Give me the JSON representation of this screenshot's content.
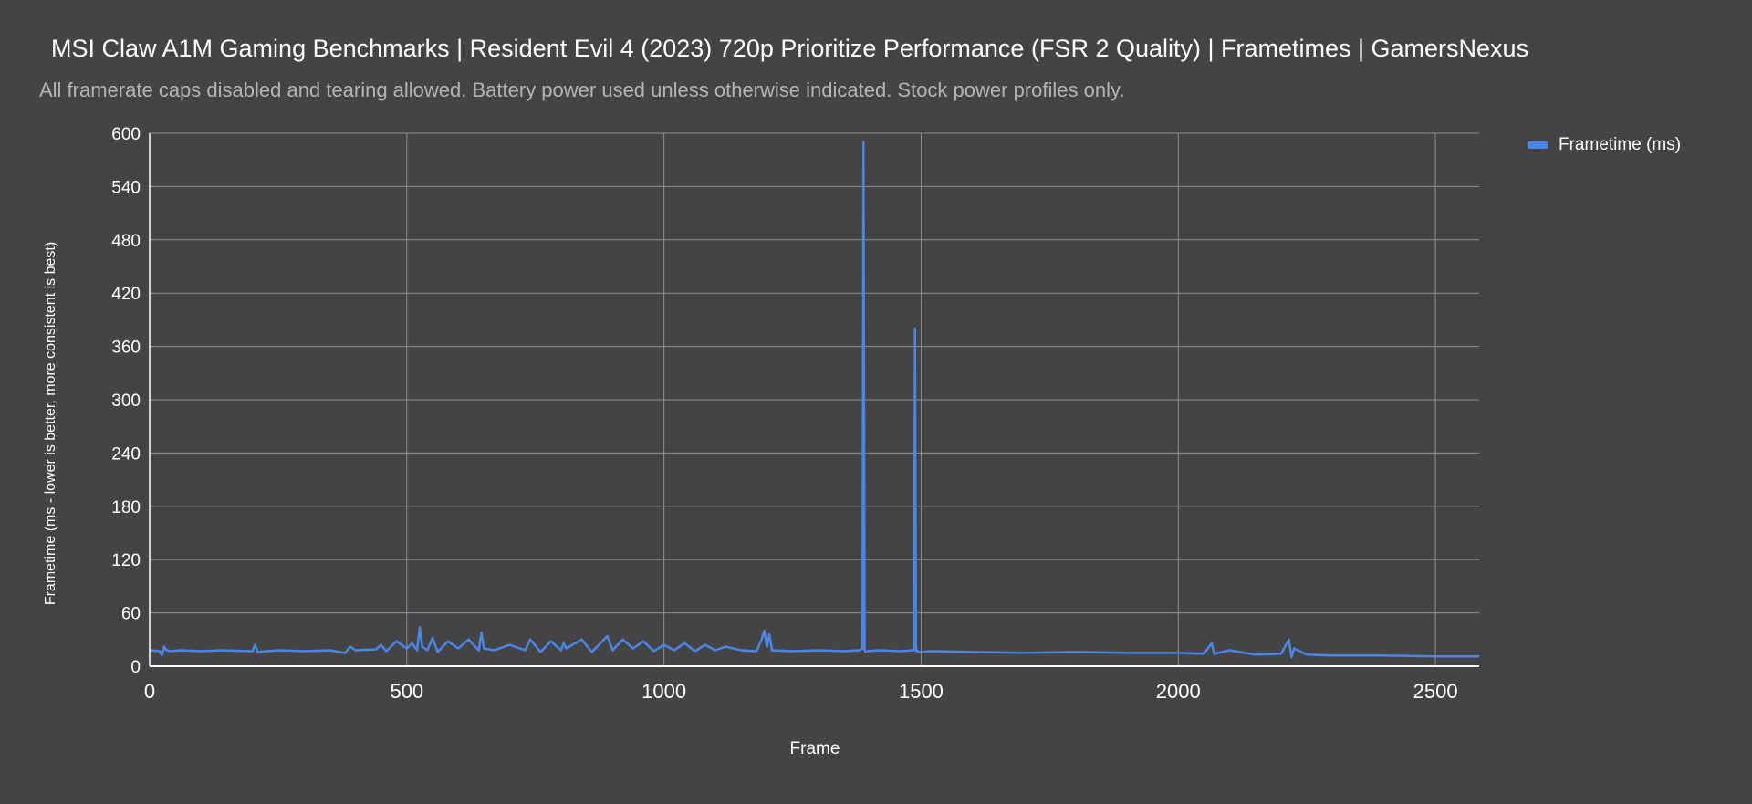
{
  "chart_data": {
    "type": "line",
    "title": "MSI Claw A1M Gaming Benchmarks | Resident Evil 4 (2023) 720p Prioritize Performance (FSR 2 Quality) | Frametimes | GamersNexus",
    "subtitle": "All framerate caps disabled and tearing allowed. Battery power used unless otherwise indicated. Stock power profiles only.",
    "xlabel": "Frame",
    "ylabel": "Frametime (ms - lower is better, more consistent is best)",
    "xlim": [
      0,
      2585
    ],
    "ylim": [
      0,
      600
    ],
    "x_ticks": [
      "0",
      "500",
      "1000",
      "1500",
      "2000",
      "2500"
    ],
    "y_ticks": [
      "0",
      "60",
      "120",
      "180",
      "240",
      "300",
      "360",
      "420",
      "480",
      "540",
      "600"
    ],
    "grid": true,
    "legend_position": "right-top",
    "series": [
      {
        "name": "Frametime (ms)",
        "color": "#4a86e8",
        "x": [
          0,
          20,
          24,
          28,
          33,
          40,
          60,
          100,
          140,
          200,
          205,
          210,
          250,
          300,
          350,
          380,
          390,
          400,
          440,
          450,
          460,
          480,
          500,
          510,
          520,
          525,
          530,
          540,
          550,
          560,
          580,
          600,
          620,
          640,
          645,
          650,
          670,
          700,
          730,
          740,
          760,
          780,
          800,
          805,
          810,
          840,
          860,
          880,
          890,
          900,
          920,
          940,
          960,
          980,
          1000,
          1020,
          1040,
          1060,
          1080,
          1100,
          1120,
          1150,
          1180,
          1190,
          1195,
          1200,
          1205,
          1210,
          1250,
          1300,
          1350,
          1380,
          1386,
          1388,
          1390,
          1392,
          1395,
          1420,
          1460,
          1486,
          1488,
          1490,
          1492,
          1495,
          1520,
          1600,
          1700,
          1800,
          1900,
          2000,
          2050,
          2065,
          2070,
          2100,
          2150,
          2200,
          2215,
          2220,
          2225,
          2250,
          2300,
          2400,
          2500,
          2585
        ],
        "values": [
          18,
          17,
          12,
          22,
          18,
          17,
          18,
          17,
          18,
          17,
          24,
          16,
          18,
          17,
          18,
          15,
          22,
          18,
          19,
          24,
          17,
          28,
          20,
          26,
          18,
          44,
          22,
          18,
          32,
          16,
          28,
          20,
          30,
          18,
          38,
          20,
          18,
          24,
          18,
          30,
          16,
          28,
          18,
          26,
          20,
          30,
          16,
          28,
          34,
          18,
          30,
          20,
          28,
          17,
          24,
          18,
          26,
          17,
          24,
          18,
          22,
          18,
          17,
          30,
          40,
          22,
          36,
          18,
          17,
          18,
          17,
          18,
          20,
          590,
          18,
          16,
          17,
          18,
          17,
          18,
          380,
          17,
          18,
          16,
          17,
          16,
          15,
          16,
          15,
          15,
          14,
          26,
          14,
          18,
          13,
          14,
          30,
          10,
          20,
          13,
          12,
          12,
          11,
          11
        ]
      }
    ]
  }
}
